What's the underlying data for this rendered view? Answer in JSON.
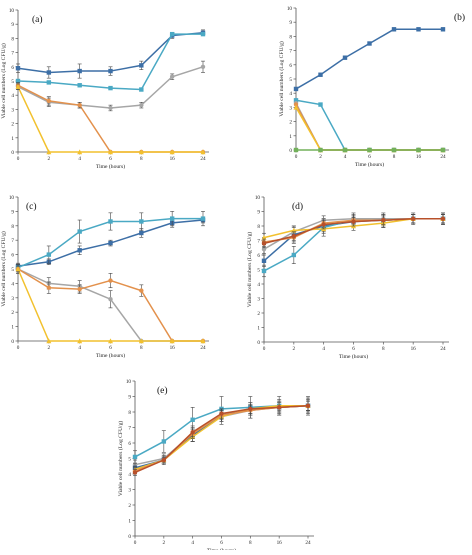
{
  "colors": {
    "steel_blue": "#3d6fa6",
    "teal": "#4aa9c4",
    "gray": "#a6a6a6",
    "orange": "#e3914c",
    "yellow": "#f2c12e",
    "dark_red": "#b8502a",
    "green": "#72b05a"
  },
  "chart_data": [
    {
      "type": "line",
      "panel_label": "(a)",
      "xlabel": "Time (hours)",
      "ylabel": "Viable cell numbers (Log CFU/g)",
      "categories": [
        "0",
        "2",
        "4",
        "6",
        "8",
        "16",
        "24"
      ],
      "ylim": [
        0,
        10
      ],
      "yticks": [
        0,
        1,
        2,
        3,
        4,
        5,
        6,
        7,
        8,
        9,
        10
      ],
      "grid": false,
      "series": [
        {
          "color": "#3d6fa6",
          "marker": "square",
          "values": [
            5.9,
            5.6,
            5.7,
            5.7,
            6.1,
            8.2,
            8.4
          ],
          "errors": [
            0.3,
            0.4,
            0.5,
            0.3,
            0.3,
            0.2,
            0.2
          ]
        },
        {
          "color": "#4aa9c4",
          "marker": "square",
          "values": [
            5.0,
            4.9,
            4.7,
            4.5,
            4.4,
            8.3,
            8.3
          ],
          "errors": [
            0.1,
            0.1,
            0.1,
            0.1,
            0.1,
            0.1,
            0.1
          ]
        },
        {
          "color": "#a6a6a6",
          "marker": "circle",
          "values": [
            4.6,
            3.5,
            3.3,
            3.1,
            3.3,
            5.3,
            6.0
          ],
          "errors": [
            0.2,
            0.3,
            0.2,
            0.2,
            0.2,
            0.2,
            0.4
          ]
        },
        {
          "color": "#e3914c",
          "marker": "circle",
          "values": [
            4.7,
            3.6,
            3.3,
            0,
            0,
            0,
            0
          ],
          "errors": [
            0.2,
            0.3,
            0.2,
            0,
            0,
            0,
            0
          ]
        },
        {
          "color": "#f2c12e",
          "marker": "triangle",
          "values": [
            4.6,
            0,
            0,
            0,
            0,
            0,
            0
          ],
          "errors": [
            0.2,
            0,
            0,
            0,
            0,
            0,
            0
          ]
        }
      ]
    },
    {
      "type": "line",
      "panel_label": "(b)",
      "xlabel": "Time (hours)",
      "ylabel": "Viable cell numbers (Log CFU/g)",
      "categories": [
        "0",
        "2",
        "4",
        "6",
        "8",
        "16",
        "24"
      ],
      "ylim": [
        0,
        10
      ],
      "yticks": [
        0,
        1,
        2,
        3,
        4,
        5,
        6,
        7,
        8,
        9,
        10
      ],
      "grid": false,
      "series": [
        {
          "color": "#3d6fa6",
          "marker": "square",
          "values": [
            4.3,
            5.3,
            6.5,
            7.5,
            8.5,
            8.5,
            8.5
          ],
          "errors": [
            0,
            0,
            0,
            0,
            0,
            0,
            0
          ]
        },
        {
          "color": "#4aa9c4",
          "marker": "square",
          "values": [
            3.5,
            3.2,
            0,
            0,
            0,
            0,
            0
          ],
          "errors": [
            0,
            0,
            0,
            0,
            0,
            0,
            0
          ]
        },
        {
          "color": "#a6a6a6",
          "marker": "circle",
          "values": [
            3.3,
            0,
            0,
            0,
            0,
            0,
            0
          ],
          "errors": [
            0,
            0,
            0,
            0,
            0,
            0,
            0
          ]
        },
        {
          "color": "#e3914c",
          "marker": "circle",
          "values": [
            3.2,
            0,
            0,
            0,
            0,
            0,
            0
          ],
          "errors": [
            0,
            0,
            0,
            0,
            0,
            0,
            0
          ]
        },
        {
          "color": "#f2c12e",
          "marker": "triangle",
          "values": [
            3.0,
            0,
            0,
            0,
            0,
            0,
            0
          ],
          "errors": [
            0,
            0,
            0,
            0,
            0,
            0,
            0
          ]
        },
        {
          "color": "#72b05a",
          "marker": "square",
          "values": [
            0,
            0,
            0,
            0,
            0,
            0,
            0
          ],
          "errors": [
            0,
            0,
            0,
            0,
            0,
            0,
            0
          ]
        }
      ]
    },
    {
      "type": "line",
      "panel_label": "(c)",
      "xlabel": "Time (hours)",
      "ylabel": "Viable cell numbers (Log CFU/g)",
      "categories": [
        "0",
        "2",
        "4",
        "6",
        "8",
        "16",
        "24"
      ],
      "ylim": [
        0,
        10
      ],
      "yticks": [
        0,
        1,
        2,
        3,
        4,
        5,
        6,
        7,
        8,
        9,
        10
      ],
      "grid": false,
      "series": [
        {
          "color": "#3d6fa6",
          "marker": "square",
          "values": [
            5.2,
            5.5,
            6.3,
            6.8,
            7.5,
            8.2,
            8.4
          ],
          "errors": [
            0.2,
            0.2,
            0.3,
            0.2,
            0.3,
            0.3,
            0.2
          ]
        },
        {
          "color": "#4aa9c4",
          "marker": "square",
          "values": [
            5.1,
            6.0,
            7.6,
            8.3,
            8.3,
            8.5,
            8.5
          ],
          "errors": [
            0.3,
            0.6,
            0.8,
            0.6,
            0.6,
            0.5,
            0.5
          ]
        },
        {
          "color": "#a6a6a6",
          "marker": "circle",
          "values": [
            5.0,
            4.0,
            3.8,
            2.9,
            0,
            0,
            0
          ],
          "errors": [
            0.3,
            0.4,
            0.4,
            0.6,
            0,
            0,
            0
          ]
        },
        {
          "color": "#e3914c",
          "marker": "circle",
          "values": [
            5.0,
            3.7,
            3.6,
            4.2,
            3.5,
            0,
            0
          ],
          "errors": [
            0.3,
            0.4,
            0.3,
            0.5,
            0.4,
            0,
            0
          ]
        },
        {
          "color": "#f2c12e",
          "marker": "triangle",
          "values": [
            5.0,
            0,
            0,
            0,
            0,
            0,
            0
          ],
          "errors": [
            0.2,
            0,
            0,
            0,
            0,
            0,
            0
          ]
        }
      ]
    },
    {
      "type": "line",
      "panel_label": "(d)",
      "xlabel": "Time (hours)",
      "ylabel": "Viable cell numbers (Log CFU/g)",
      "categories": [
        "0",
        "2",
        "4",
        "6",
        "8",
        "16",
        "24"
      ],
      "ylim": [
        0,
        10
      ],
      "yticks": [
        0,
        1,
        2,
        3,
        4,
        5,
        6,
        7,
        8,
        9,
        10
      ],
      "grid": false,
      "series": [
        {
          "color": "#3d6fa6",
          "marker": "square",
          "values": [
            5.6,
            7.4,
            8.0,
            8.3,
            8.4,
            8.5,
            8.5
          ],
          "errors": [
            0.4,
            0.5,
            0.4,
            0.4,
            0.4,
            0.3,
            0.4
          ]
        },
        {
          "color": "#4aa9c4",
          "marker": "square",
          "values": [
            4.9,
            6.0,
            7.9,
            8.4,
            8.4,
            8.5,
            8.5
          ],
          "errors": [
            0.4,
            0.6,
            0.6,
            0.5,
            0.5,
            0.4,
            0.4
          ]
        },
        {
          "color": "#a6a6a6",
          "marker": "circle",
          "values": [
            6.4,
            7.6,
            8.4,
            8.5,
            8.5,
            8.5,
            8.5
          ],
          "errors": [
            0.3,
            0.4,
            0.3,
            0.3,
            0.3,
            0.3,
            0.3
          ]
        },
        {
          "color": "#e3914c",
          "marker": "circle",
          "values": [
            6.9,
            7.2,
            8.2,
            8.4,
            8.4,
            8.5,
            8.5
          ],
          "errors": [
            0.3,
            0.4,
            0.3,
            0.3,
            0.3,
            0.3,
            0.3
          ]
        },
        {
          "color": "#f2c12e",
          "marker": "triangle",
          "values": [
            7.2,
            7.7,
            7.8,
            8.0,
            8.2,
            8.5,
            8.5
          ],
          "errors": [
            0.3,
            0.3,
            0.3,
            0.3,
            0.3,
            0.3,
            0.3
          ]
        },
        {
          "color": "#b8502a",
          "marker": "circle",
          "values": [
            6.8,
            7.3,
            8.1,
            8.3,
            8.4,
            8.5,
            8.5
          ],
          "errors": [
            0.3,
            0.3,
            0.3,
            0.3,
            0.3,
            0.3,
            0.3
          ]
        }
      ]
    },
    {
      "type": "line",
      "panel_label": "(e)",
      "xlabel": "Time (hours)",
      "ylabel": "Viable cell numbers (Log CFU/g)",
      "categories": [
        "0",
        "2",
        "4",
        "6",
        "8",
        "16",
        "24"
      ],
      "ylim": [
        0,
        10
      ],
      "yticks": [
        0,
        1,
        2,
        3,
        4,
        5,
        6,
        7,
        8,
        9,
        10
      ],
      "grid": false,
      "series": [
        {
          "color": "#4aa9c4",
          "marker": "square",
          "values": [
            5.1,
            6.1,
            7.5,
            8.2,
            8.3,
            8.4,
            8.4
          ],
          "errors": [
            0.4,
            0.7,
            0.8,
            0.8,
            0.7,
            0.6,
            0.6
          ]
        },
        {
          "color": "#a6a6a6",
          "marker": "circle",
          "values": [
            4.6,
            5.0,
            6.6,
            7.7,
            8.1,
            8.3,
            8.4
          ],
          "errors": [
            0.3,
            0.3,
            0.5,
            0.5,
            0.5,
            0.5,
            0.5
          ]
        },
        {
          "color": "#3d6fa6",
          "marker": "square",
          "values": [
            4.4,
            4.9,
            6.5,
            7.8,
            8.2,
            8.3,
            8.4
          ],
          "errors": [
            0.3,
            0.3,
            0.4,
            0.4,
            0.4,
            0.4,
            0.4
          ]
        },
        {
          "color": "#f2c12e",
          "marker": "triangle",
          "values": [
            4.3,
            4.9,
            6.4,
            7.7,
            8.2,
            8.4,
            8.4
          ],
          "errors": [
            0.2,
            0.2,
            0.3,
            0.3,
            0.3,
            0.3,
            0.3
          ]
        },
        {
          "color": "#e3914c",
          "marker": "circle",
          "values": [
            4.2,
            4.9,
            6.6,
            7.8,
            8.1,
            8.3,
            8.4
          ],
          "errors": [
            0.2,
            0.2,
            0.3,
            0.3,
            0.3,
            0.3,
            0.3
          ]
        },
        {
          "color": "#b8502a",
          "marker": "circle",
          "values": [
            4.1,
            4.9,
            6.7,
            7.9,
            8.2,
            8.3,
            8.4
          ],
          "errors": [
            0.2,
            0.2,
            0.3,
            0.3,
            0.3,
            0.3,
            0.3
          ]
        }
      ]
    }
  ]
}
